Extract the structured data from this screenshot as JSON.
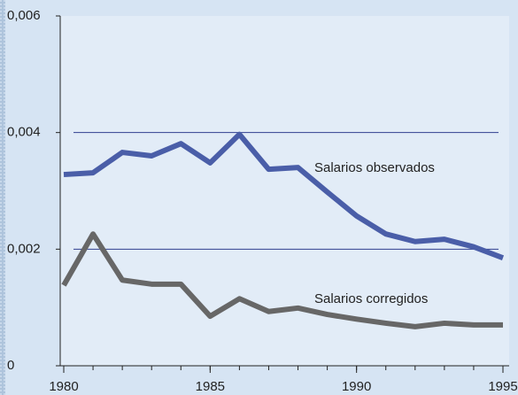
{
  "chart_data": {
    "type": "line",
    "x": [
      1980,
      1981,
      1982,
      1983,
      1984,
      1985,
      1986,
      1987,
      1988,
      1989,
      1990,
      1991,
      1992,
      1993,
      1994,
      1995
    ],
    "series": [
      {
        "name": "Salarios observados",
        "color": "#4a5ea8",
        "values": [
          0.00328,
          0.00331,
          0.00366,
          0.0036,
          0.00381,
          0.00348,
          0.00397,
          0.00337,
          0.0034,
          0.00298,
          0.00257,
          0.00226,
          0.00213,
          0.00217,
          0.00204,
          0.00185
        ]
      },
      {
        "name": "Salarios corregidos",
        "color": "#676767",
        "values": [
          0.00138,
          0.00226,
          0.00147,
          0.0014,
          0.0014,
          0.00085,
          0.00115,
          0.00093,
          0.00099,
          0.00088,
          0.0008,
          0.00073,
          0.00067,
          0.00073,
          0.0007,
          0.0007
        ]
      }
    ],
    "xlim": [
      1980,
      1995
    ],
    "xticks": [
      1980,
      1985,
      1990,
      1995
    ],
    "xminor_ticks": [
      1980,
      1981,
      1982,
      1983,
      1984,
      1985,
      1986,
      1987,
      1988,
      1989,
      1990,
      1991,
      1992,
      1993,
      1994,
      1995
    ],
    "ylim": [
      0,
      0.006
    ],
    "yticks": [
      0,
      {
        "value": 0.002,
        "label": "0,002"
      },
      {
        "value": 0.004,
        "label": "0,004"
      },
      {
        "value": 0.006,
        "label": "0,006"
      }
    ],
    "grid": true
  }
}
